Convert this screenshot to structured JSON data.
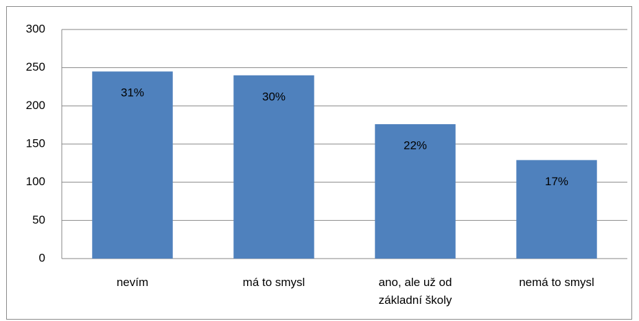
{
  "chart_data": {
    "type": "bar",
    "categories": [
      "nevím",
      "má to smysl",
      "ano, ale už od základní školy",
      "nemá to smysl"
    ],
    "values": [
      245,
      240,
      176,
      129
    ],
    "share_labels": [
      "31%",
      "30%",
      "22%",
      "17%"
    ],
    "color": "#4f81bd",
    "ylim": [
      0,
      300
    ],
    "yticks": [
      0,
      50,
      100,
      150,
      200,
      250,
      300
    ],
    "grid": true
  }
}
